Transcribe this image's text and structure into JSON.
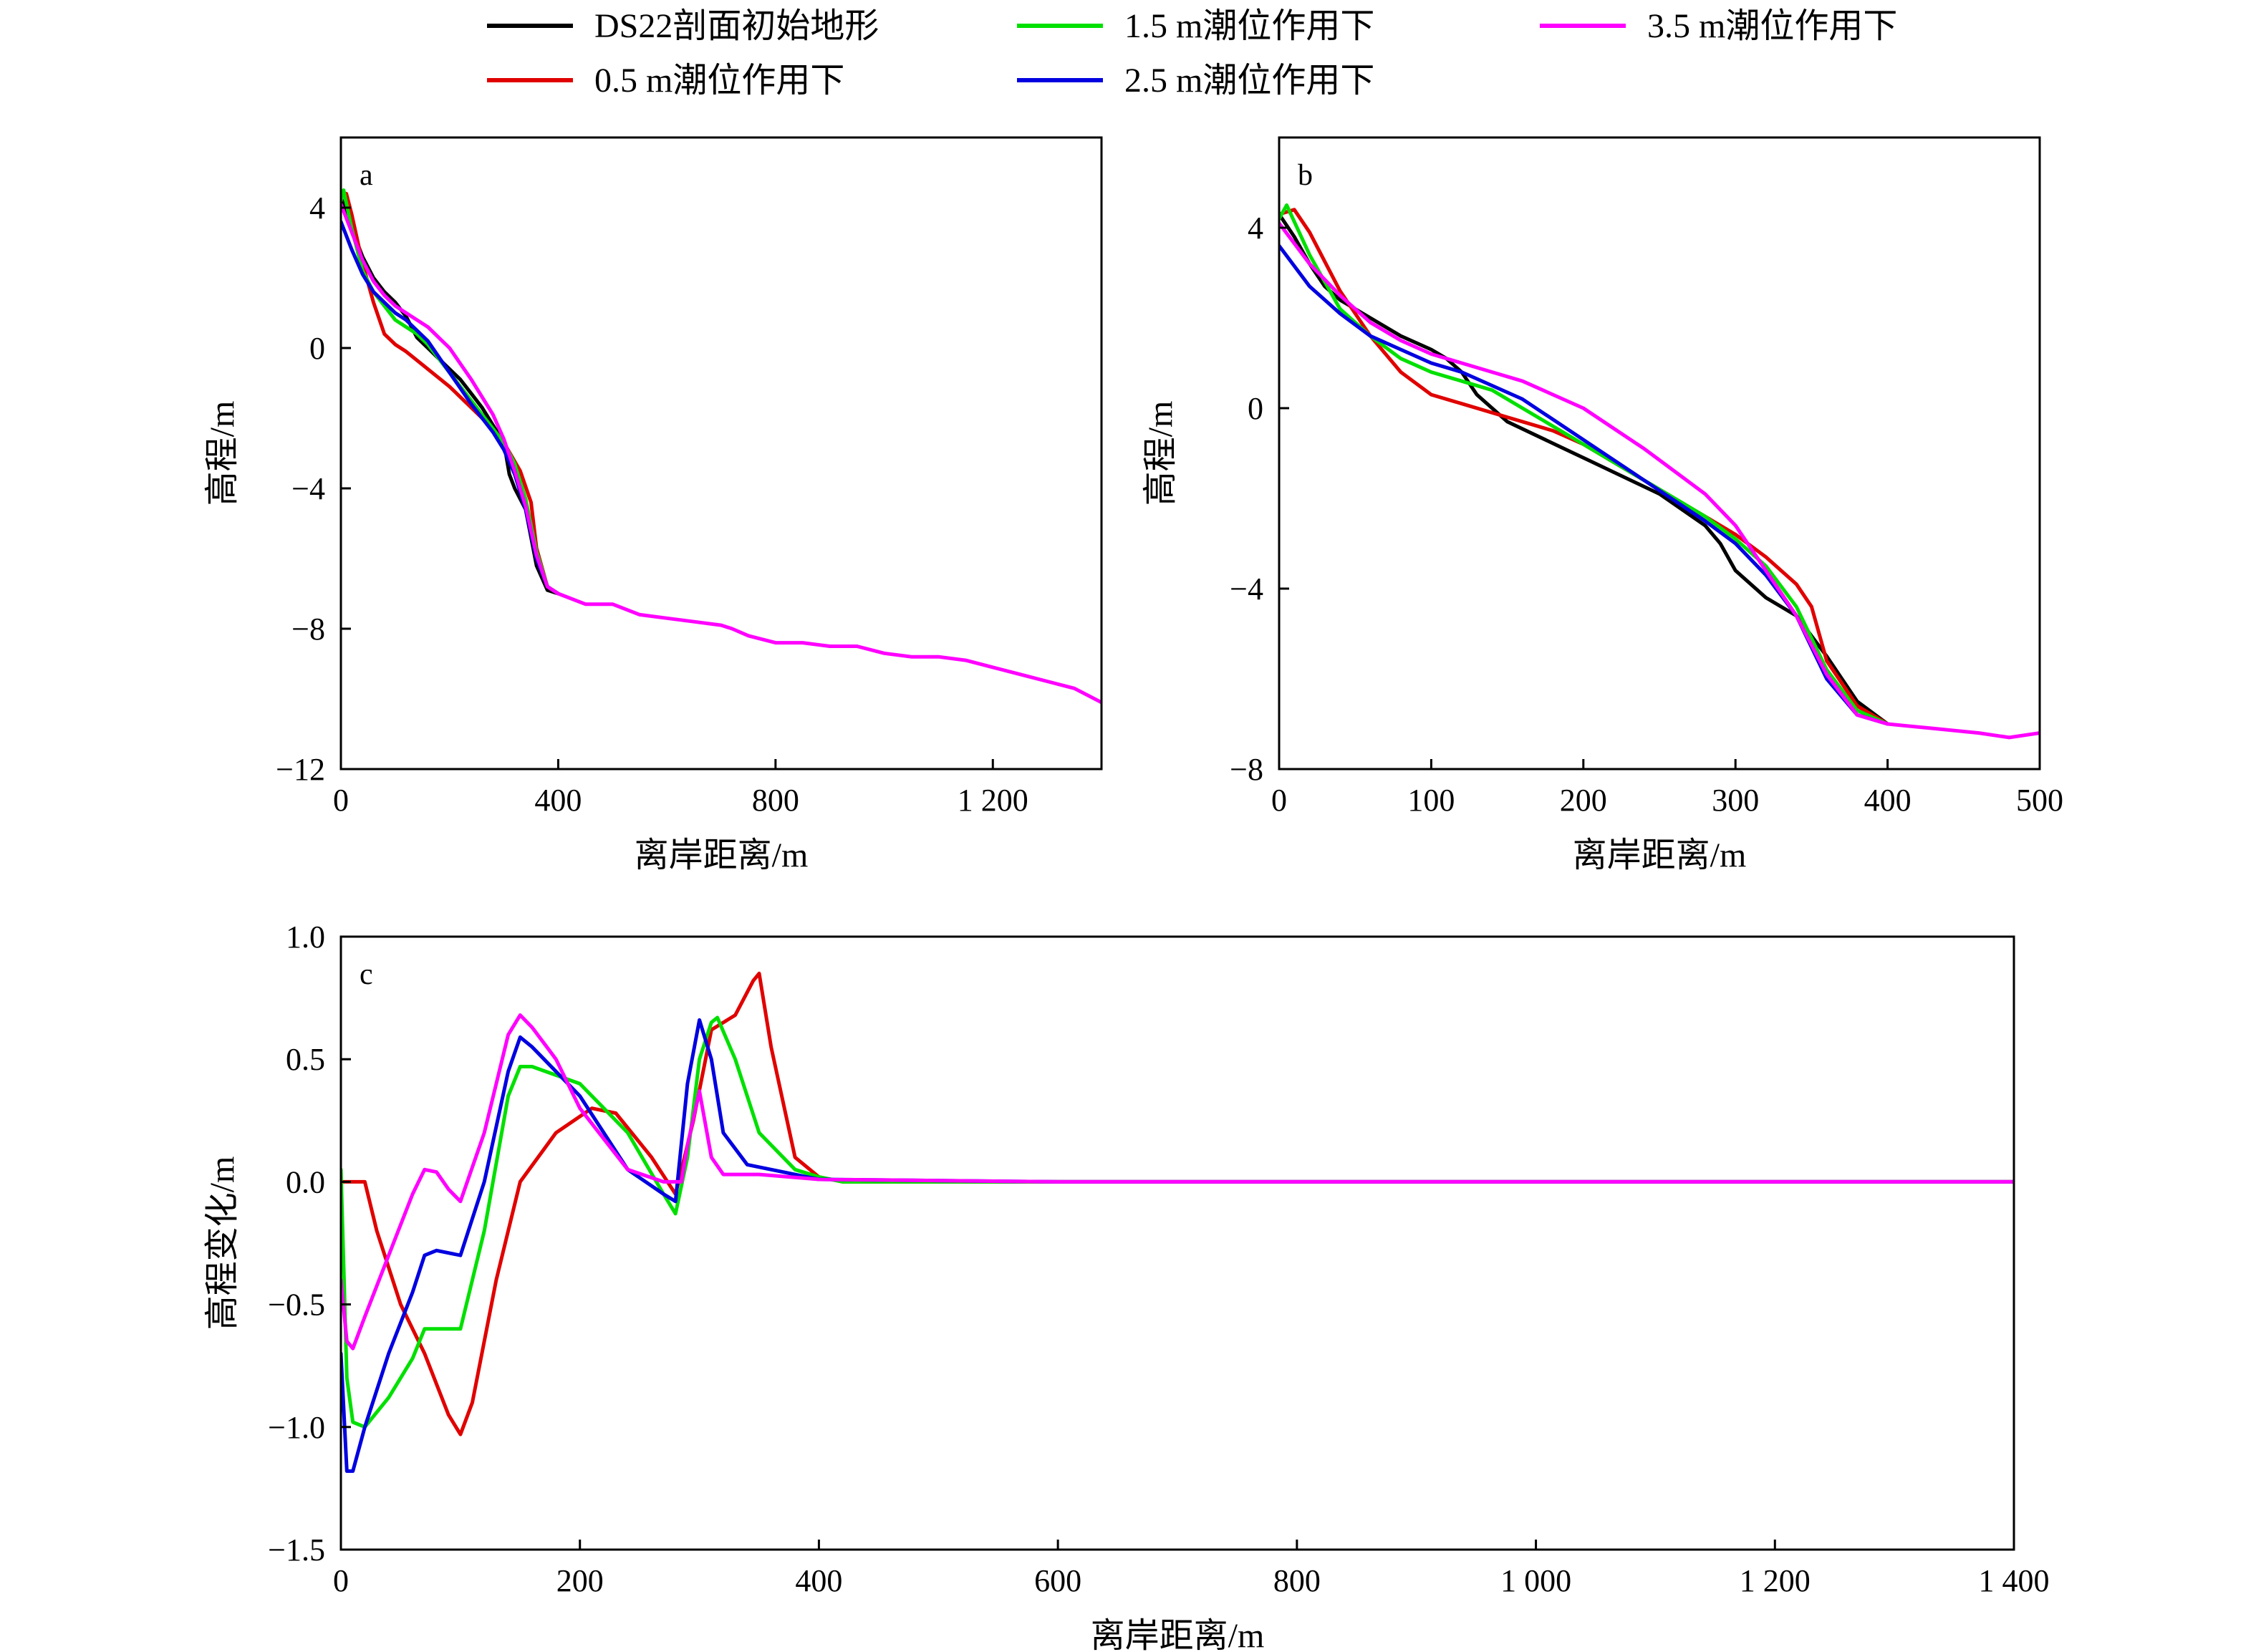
{
  "legend": {
    "items": [
      {
        "label": "DS22剖面初始地形",
        "color": "#000000"
      },
      {
        "label": "1.5 m潮位作用下",
        "color": "#00e000"
      },
      {
        "label": "3.5 m潮位作用下",
        "color": "#ff00ff"
      },
      {
        "label": "0.5 m潮位作用下",
        "color": "#e00000"
      },
      {
        "label": "2.5 m潮位作用下",
        "color": "#0000e0"
      }
    ]
  },
  "chart_data": [
    {
      "panel": "a",
      "type": "line",
      "xlabel": "离岸距离/m",
      "ylabel": "高程/m",
      "xlim": [
        0,
        1400
      ],
      "ylim": [
        -12,
        6
      ],
      "xticks": [
        0,
        400,
        800,
        1200
      ],
      "xtick_labels": [
        "0",
        "400",
        "800",
        "1 200"
      ],
      "yticks": [
        -12,
        -8,
        -4,
        0,
        4
      ],
      "ytick_labels": [
        "−12",
        "−8",
        "−4",
        "0",
        "4"
      ],
      "series": [
        {
          "name": "DS22剖面初始地形",
          "color": "#000000",
          "x": [
            0,
            20,
            40,
            60,
            80,
            100,
            120,
            140,
            160,
            180,
            200,
            220,
            240,
            260,
            280,
            300,
            310,
            320,
            340,
            360,
            380,
            400
          ],
          "y": [
            4.3,
            3.4,
            2.6,
            2.0,
            1.6,
            1.3,
            0.9,
            0.3,
            0.0,
            -0.3,
            -0.6,
            -0.9,
            -1.3,
            -1.7,
            -2.2,
            -2.7,
            -3.6,
            -4.0,
            -4.6,
            -6.2,
            -6.9,
            -7.0
          ]
        },
        {
          "name": "0.5 m潮位作用下",
          "color": "#e00000",
          "x": [
            0,
            10,
            20,
            40,
            60,
            80,
            100,
            120,
            160,
            200,
            240,
            280,
            300,
            330,
            350,
            360,
            380,
            400
          ],
          "y": [
            4.3,
            4.4,
            3.8,
            2.4,
            1.3,
            0.4,
            0.1,
            -0.1,
            -0.6,
            -1.1,
            -1.7,
            -2.3,
            -2.7,
            -3.5,
            -4.4,
            -5.7,
            -6.8,
            -7.0
          ]
        },
        {
          "name": "1.5 m潮位作用下",
          "color": "#00e000",
          "x": [
            0,
            5,
            20,
            40,
            60,
            80,
            100,
            120,
            140,
            160,
            200,
            240,
            280,
            300,
            320,
            340,
            360,
            380,
            400
          ],
          "y": [
            4.2,
            4.5,
            3.4,
            2.2,
            1.6,
            1.2,
            0.8,
            0.6,
            0.4,
            0.1,
            -0.7,
            -1.5,
            -2.3,
            -2.7,
            -3.3,
            -4.3,
            -5.8,
            -6.8,
            -7.0
          ]
        },
        {
          "name": "2.5 m潮位作用下",
          "color": "#0000e0",
          "x": [
            0,
            20,
            40,
            60,
            80,
            100,
            120,
            140,
            160,
            200,
            240,
            280,
            300,
            320,
            340,
            360,
            380,
            400
          ],
          "y": [
            3.6,
            2.8,
            2.1,
            1.6,
            1.3,
            1.0,
            0.8,
            0.5,
            0.2,
            -0.7,
            -1.6,
            -2.4,
            -2.9,
            -3.6,
            -4.6,
            -6.0,
            -6.8,
            -7.0
          ]
        },
        {
          "name": "3.5 m潮位作用下",
          "color": "#ff00ff",
          "x": [
            0,
            20,
            40,
            60,
            80,
            100,
            120,
            140,
            160,
            180,
            200,
            240,
            280,
            300,
            320,
            340,
            360,
            380,
            400,
            450,
            500,
            550,
            600,
            650,
            700,
            720,
            750,
            800,
            850,
            900,
            950,
            1000,
            1050,
            1100,
            1150,
            1200,
            1250,
            1300,
            1350,
            1400
          ],
          "y": [
            4.1,
            3.3,
            2.5,
            1.9,
            1.5,
            1.2,
            1.0,
            0.8,
            0.6,
            0.3,
            0.0,
            -0.9,
            -1.9,
            -2.6,
            -3.5,
            -4.5,
            -5.9,
            -6.8,
            -7.0,
            -7.3,
            -7.3,
            -7.6,
            -7.7,
            -7.8,
            -7.9,
            -8.0,
            -8.2,
            -8.4,
            -8.4,
            -8.5,
            -8.5,
            -8.7,
            -8.8,
            -8.8,
            -8.9,
            -9.1,
            -9.3,
            -9.5,
            -9.7,
            -10.1
          ]
        }
      ]
    },
    {
      "panel": "b",
      "type": "line",
      "xlabel": "离岸距离/m",
      "ylabel": "高程/m",
      "xlim": [
        0,
        500
      ],
      "ylim": [
        -8,
        6
      ],
      "xticks": [
        0,
        100,
        200,
        300,
        400,
        500
      ],
      "xtick_labels": [
        "0",
        "100",
        "200",
        "300",
        "400",
        "500"
      ],
      "yticks": [
        -8,
        -4,
        0,
        4
      ],
      "ytick_labels": [
        "−8",
        "−4",
        "0",
        "4"
      ],
      "series": [
        {
          "name": "DS22剖面初始地形",
          "color": "#000000",
          "x": [
            0,
            10,
            20,
            30,
            40,
            60,
            80,
            100,
            110,
            120,
            130,
            140,
            150,
            200,
            250,
            280,
            290,
            300,
            320,
            340,
            360,
            380,
            400
          ],
          "y": [
            4.3,
            3.8,
            3.2,
            2.7,
            2.4,
            2.0,
            1.6,
            1.3,
            1.1,
            0.8,
            0.3,
            0.0,
            -0.3,
            -1.1,
            -1.9,
            -2.6,
            -3.0,
            -3.6,
            -4.2,
            -4.6,
            -5.5,
            -6.5,
            -7.0
          ]
        },
        {
          "name": "0.5 m潮位作用下",
          "color": "#e00000",
          "x": [
            0,
            10,
            20,
            40,
            60,
            80,
            100,
            120,
            150,
            180,
            200,
            220,
            250,
            280,
            300,
            320,
            340,
            350,
            360,
            380,
            400
          ],
          "y": [
            4.3,
            4.4,
            3.9,
            2.6,
            1.6,
            0.8,
            0.3,
            0.1,
            -0.2,
            -0.5,
            -0.8,
            -1.2,
            -1.8,
            -2.4,
            -2.8,
            -3.3,
            -3.9,
            -4.4,
            -5.6,
            -6.6,
            -7.0
          ]
        },
        {
          "name": "1.5 m潮位作用下",
          "color": "#00e000",
          "x": [
            0,
            5,
            20,
            40,
            60,
            80,
            100,
            120,
            140,
            160,
            200,
            240,
            280,
            300,
            320,
            340,
            360,
            380,
            400
          ],
          "y": [
            4.2,
            4.5,
            3.4,
            2.2,
            1.6,
            1.1,
            0.8,
            0.6,
            0.4,
            0.0,
            -0.8,
            -1.6,
            -2.4,
            -2.9,
            -3.5,
            -4.4,
            -5.8,
            -6.7,
            -7.0
          ]
        },
        {
          "name": "2.5 m潮位作用下",
          "color": "#0000e0",
          "x": [
            0,
            20,
            40,
            60,
            80,
            100,
            120,
            140,
            160,
            200,
            240,
            280,
            300,
            320,
            340,
            360,
            380,
            400
          ],
          "y": [
            3.6,
            2.7,
            2.1,
            1.6,
            1.3,
            1.0,
            0.8,
            0.5,
            0.2,
            -0.7,
            -1.6,
            -2.5,
            -3.0,
            -3.7,
            -4.6,
            -6.0,
            -6.8,
            -7.0
          ]
        },
        {
          "name": "3.5 m潮位作用下",
          "color": "#ff00ff",
          "x": [
            0,
            20,
            40,
            60,
            80,
            100,
            120,
            140,
            160,
            180,
            200,
            240,
            280,
            300,
            320,
            340,
            360,
            380,
            400,
            430,
            460,
            480,
            500
          ],
          "y": [
            4.1,
            3.2,
            2.5,
            1.9,
            1.5,
            1.2,
            1.0,
            0.8,
            0.6,
            0.3,
            0.0,
            -0.9,
            -1.9,
            -2.6,
            -3.6,
            -4.6,
            -5.9,
            -6.8,
            -7.0,
            -7.1,
            -7.2,
            -7.3,
            -7.2
          ]
        }
      ]
    },
    {
      "panel": "c",
      "type": "line",
      "xlabel": "离岸距离/m",
      "ylabel": "高程变化/m",
      "xlim": [
        0,
        1400
      ],
      "ylim": [
        -1.5,
        1.0
      ],
      "xticks": [
        0,
        200,
        400,
        600,
        800,
        1000,
        1200,
        1400
      ],
      "xtick_labels": [
        "0",
        "200",
        "400",
        "600",
        "800",
        "1 000",
        "1 200",
        "1 400"
      ],
      "yticks": [
        -1.5,
        -1.0,
        -0.5,
        0.0,
        0.5,
        1.0
      ],
      "ytick_labels": [
        "−1.5",
        "−1.0",
        "−0.5",
        "0.0",
        "0.5",
        "1.0"
      ],
      "series": [
        {
          "name": "0.5 m潮位作用下",
          "color": "#e00000",
          "x": [
            0,
            20,
            30,
            50,
            70,
            90,
            100,
            110,
            130,
            150,
            180,
            210,
            230,
            260,
            280,
            295,
            310,
            330,
            345,
            350,
            360,
            380,
            400,
            420,
            600,
            1400
          ],
          "y": [
            0.0,
            0.0,
            -0.2,
            -0.5,
            -0.7,
            -0.95,
            -1.03,
            -0.9,
            -0.4,
            0.0,
            0.2,
            0.3,
            0.28,
            0.1,
            -0.05,
            0.25,
            0.62,
            0.68,
            0.82,
            0.85,
            0.55,
            0.1,
            0.02,
            0.0,
            0.0,
            0.0
          ]
        },
        {
          "name": "1.5 m潮位作用下",
          "color": "#00e000",
          "x": [
            0,
            5,
            10,
            20,
            40,
            60,
            70,
            80,
            100,
            120,
            140,
            150,
            160,
            200,
            240,
            270,
            280,
            290,
            300,
            310,
            315,
            330,
            350,
            380,
            400,
            420,
            600,
            1400
          ],
          "y": [
            0.05,
            -0.8,
            -0.98,
            -1.0,
            -0.88,
            -0.72,
            -0.6,
            -0.6,
            -0.6,
            -0.2,
            0.35,
            0.47,
            0.47,
            0.4,
            0.2,
            -0.05,
            -0.13,
            0.1,
            0.5,
            0.65,
            0.67,
            0.5,
            0.2,
            0.05,
            0.02,
            0.0,
            0.0,
            0.0
          ]
        },
        {
          "name": "2.5 m潮位作用下",
          "color": "#0000e0",
          "x": [
            0,
            5,
            10,
            20,
            40,
            60,
            70,
            80,
            100,
            120,
            140,
            150,
            160,
            200,
            240,
            270,
            280,
            290,
            300,
            310,
            320,
            340,
            370,
            400,
            600,
            1400
          ],
          "y": [
            -0.7,
            -1.18,
            -1.18,
            -1.0,
            -0.7,
            -0.45,
            -0.3,
            -0.28,
            -0.3,
            0.0,
            0.45,
            0.59,
            0.55,
            0.35,
            0.05,
            -0.05,
            -0.08,
            0.4,
            0.66,
            0.5,
            0.2,
            0.07,
            0.04,
            0.01,
            0.0,
            0.0
          ]
        },
        {
          "name": "3.5 m潮位作用下",
          "color": "#ff00ff",
          "x": [
            0,
            5,
            10,
            20,
            40,
            60,
            70,
            80,
            90,
            100,
            120,
            140,
            150,
            160,
            180,
            200,
            240,
            270,
            285,
            290,
            300,
            310,
            320,
            330,
            350,
            400,
            600,
            1400
          ],
          "y": [
            -0.4,
            -0.65,
            -0.68,
            -0.55,
            -0.3,
            -0.05,
            0.05,
            0.04,
            -0.03,
            -0.08,
            0.2,
            0.6,
            0.68,
            0.63,
            0.5,
            0.3,
            0.05,
            0.0,
            0.0,
            0.15,
            0.37,
            0.1,
            0.03,
            0.03,
            0.03,
            0.01,
            0.0,
            0.0
          ]
        }
      ]
    }
  ]
}
